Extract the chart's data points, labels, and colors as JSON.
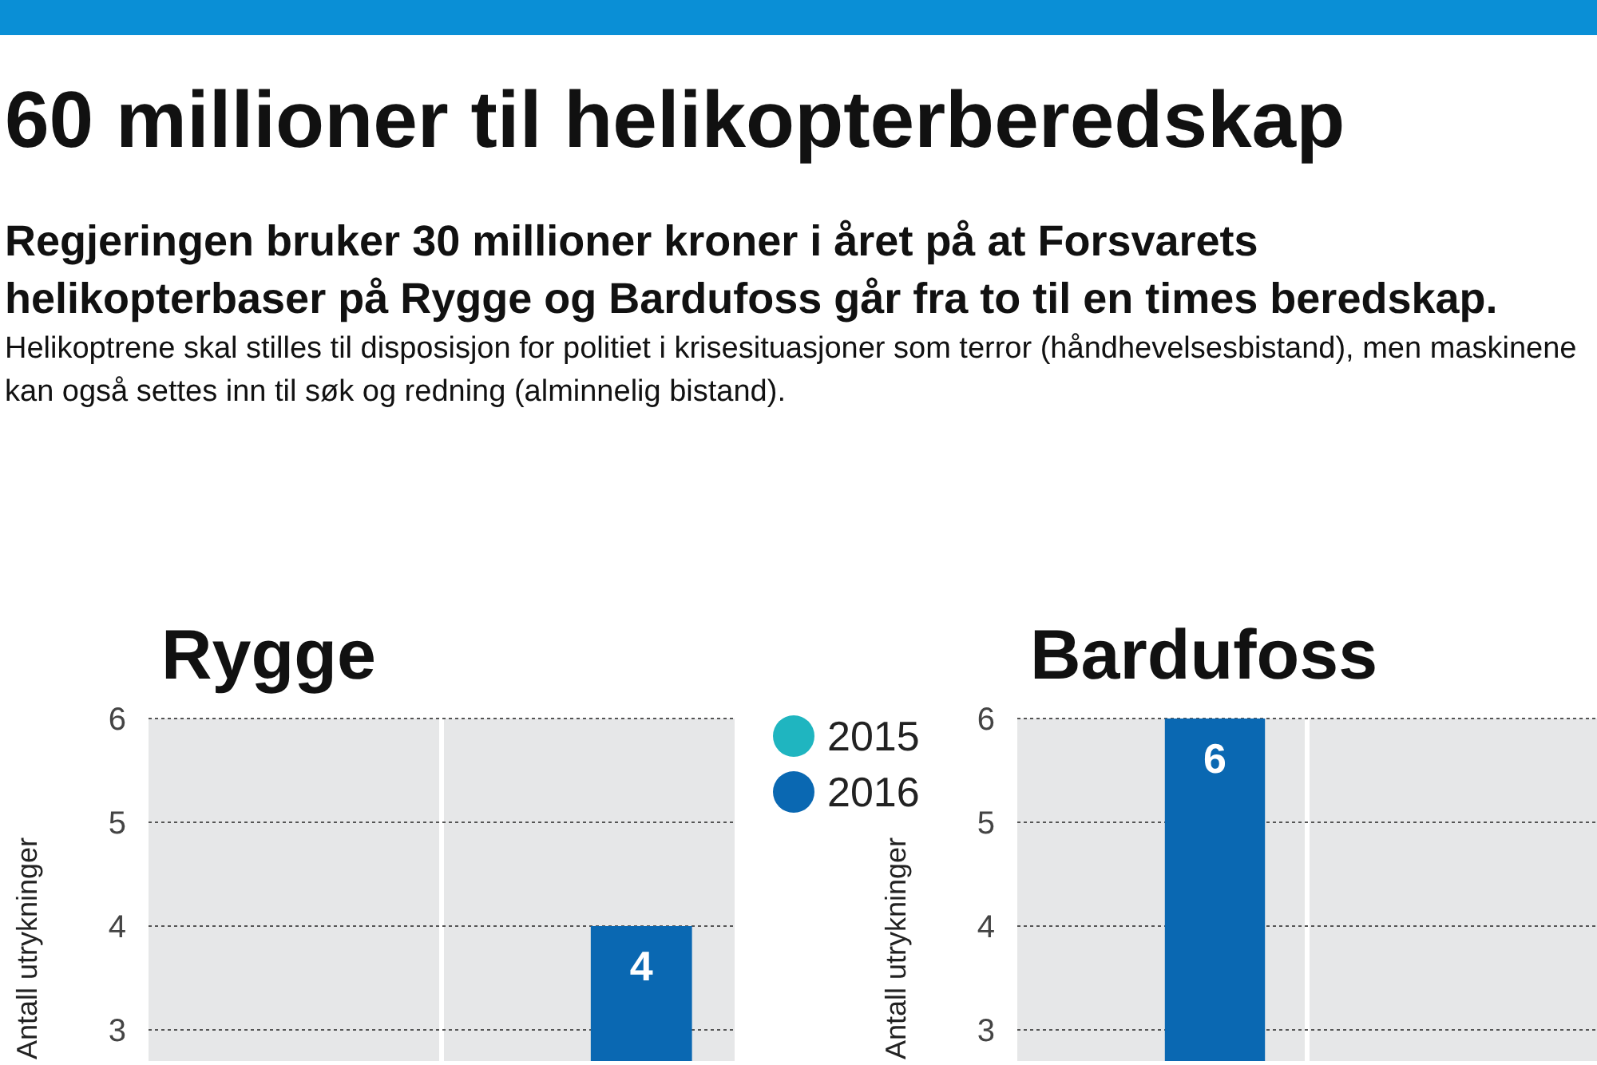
{
  "chart_data": [
    {
      "type": "other",
      "title": "60 millioner til helikopterberedskap",
      "subtitle": "Regjeringen bruker 30 millioner kroner i året på at Forsvarets helikopterbaser på Rygge og Bardufoss går fra to til en times beredskap.",
      "annotations": [
        "Helikoptrene skal stilles til disposisjon for politiet i krisesituasjoner som terror (håndhevelsesbistand), men maskinene kan også settes inn til søk og redning (alminnelig bistand)."
      ]
    },
    {
      "type": "bar",
      "title": "Rygge",
      "ylabel": "Antall utrykninger",
      "categories": [
        null,
        null
      ],
      "ylim": [
        2.7,
        6
      ],
      "yticks": [
        3,
        4,
        5,
        6
      ],
      "grid": "y",
      "legend": "top right",
      "data_labels": true,
      "series": [
        {
          "name": "2015",
          "color": "#1fb5c0",
          "values": [
            null,
            null
          ]
        },
        {
          "name": "2016",
          "color": "#0a68b2",
          "values": [
            null,
            4
          ]
        }
      ]
    },
    {
      "type": "bar",
      "title": "Bardufoss",
      "ylabel": "Antall utrykninger",
      "categories": [
        null,
        null
      ],
      "ylim": [
        2.7,
        6
      ],
      "yticks": [
        3,
        4,
        5,
        6
      ],
      "grid": "y",
      "data_labels": true,
      "series": [
        {
          "values": [
            null,
            null
          ]
        },
        {
          "color": "#0a68b2",
          "values": [
            6,
            null
          ]
        }
      ]
    }
  ]
}
